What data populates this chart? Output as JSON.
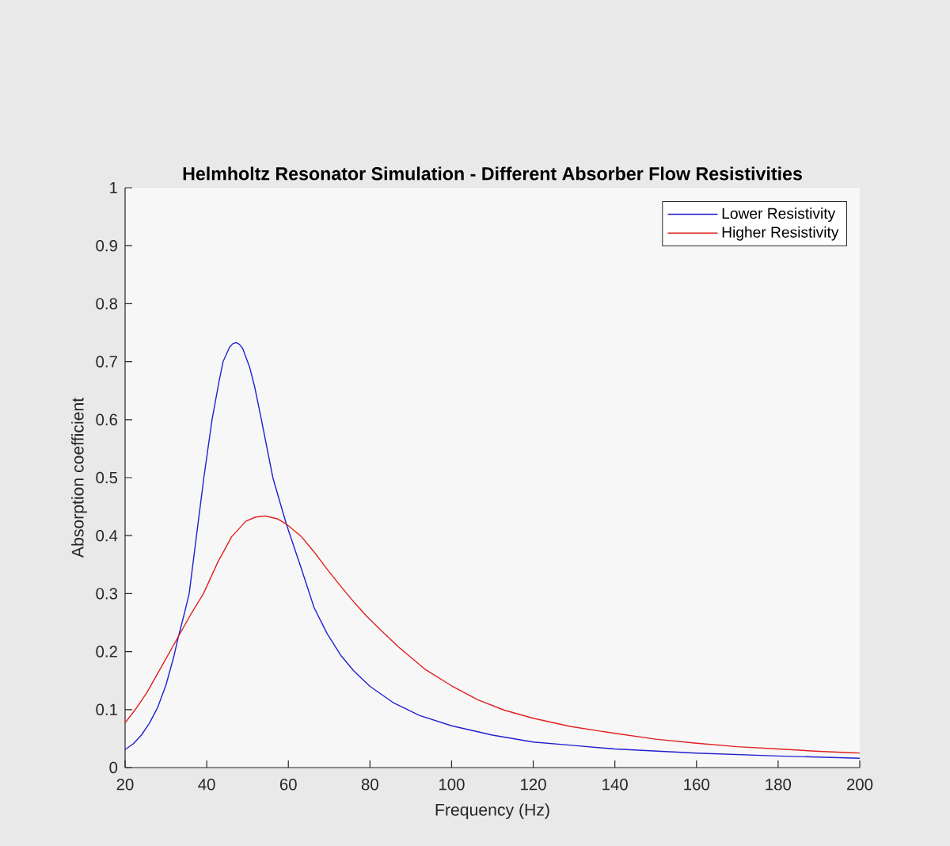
{
  "chart_data": {
    "type": "line",
    "title": "Helmholtz Resonator Simulation - Different Absorber Flow Resistivities",
    "xlabel": "Frequency (Hz)",
    "ylabel": "Absorption coefficient",
    "series": [
      {
        "name": "Lower Resistivity",
        "color": "#2020d0",
        "x": [
          20,
          22,
          24,
          26,
          28,
          30,
          32,
          33,
          34.5,
          35.7,
          37.5,
          39.3,
          41.3,
          43,
          44,
          45.6,
          46.4,
          47.2,
          48,
          48.8,
          50.5,
          51.8,
          53.4,
          56.2,
          59.5,
          63.1,
          66.3,
          69.5,
          72.8,
          76,
          80,
          85.7,
          92.1,
          100,
          110,
          120,
          130,
          140,
          160,
          180,
          200
        ],
        "values": [
          0.031,
          0.041,
          0.056,
          0.077,
          0.104,
          0.142,
          0.193,
          0.224,
          0.265,
          0.3,
          0.4,
          0.5,
          0.6,
          0.665,
          0.7,
          0.725,
          0.731,
          0.733,
          0.73,
          0.723,
          0.691,
          0.655,
          0.6,
          0.5,
          0.42,
          0.345,
          0.276,
          0.231,
          0.194,
          0.167,
          0.14,
          0.112,
          0.09,
          0.072,
          0.056,
          0.044,
          0.038,
          0.032,
          0.025,
          0.02,
          0.016
        ]
      },
      {
        "name": "Higher Resistivity",
        "color": "#e02020",
        "x": [
          20,
          22.5,
          25.3,
          29,
          32.9,
          36,
          39.2,
          42.7,
          46.1,
          49.6,
          52,
          54.3,
          57.3,
          59.5,
          63.1,
          66.3,
          69.5,
          72.8,
          76,
          79.2,
          82.5,
          87,
          93.4,
          100,
          106.4,
          112.9,
          120,
          129,
          140,
          150,
          160,
          170,
          180,
          190,
          200
        ],
        "values": [
          0.077,
          0.1,
          0.129,
          0.175,
          0.224,
          0.263,
          0.3,
          0.354,
          0.398,
          0.425,
          0.432,
          0.434,
          0.429,
          0.42,
          0.399,
          0.372,
          0.342,
          0.313,
          0.286,
          0.261,
          0.238,
          0.208,
          0.17,
          0.141,
          0.117,
          0.099,
          0.085,
          0.071,
          0.059,
          0.049,
          0.042,
          0.036,
          0.032,
          0.028,
          0.025
        ]
      }
    ],
    "xlim": [
      20,
      200
    ],
    "ylim": [
      0,
      1
    ],
    "xticks": [
      20,
      40,
      60,
      80,
      100,
      120,
      140,
      160,
      180,
      200
    ],
    "yticks": [
      0,
      0.1,
      0.2,
      0.3,
      0.4,
      0.5,
      0.6,
      0.7,
      0.8,
      0.9,
      1
    ],
    "legend": "top right"
  }
}
